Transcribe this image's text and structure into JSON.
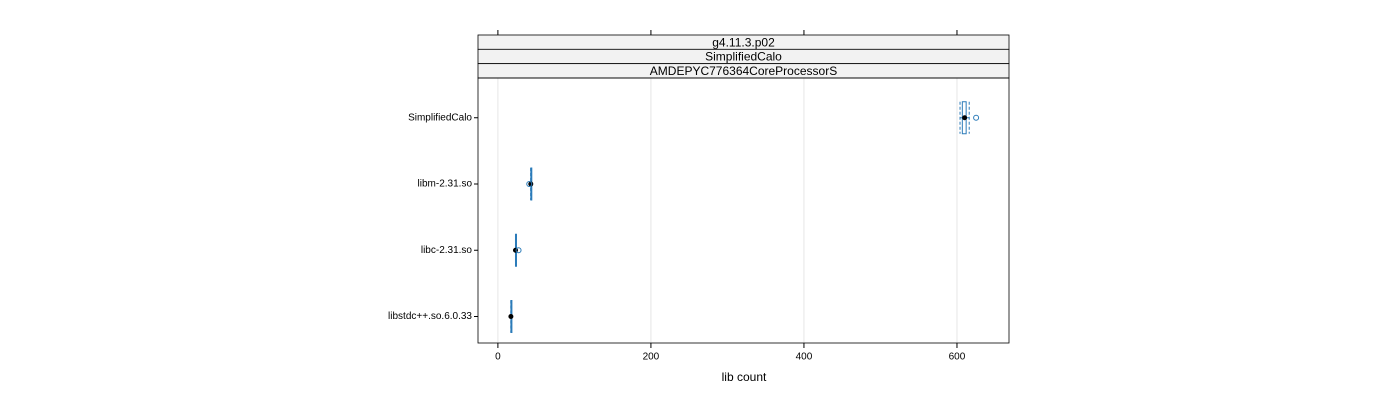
{
  "chart_data": {
    "type": "box",
    "strips": [
      "g4.11.3.p02",
      "SimplifiedCalo",
      "AMDEPYC776364CoreProcessorS"
    ],
    "xlabel": "lib count",
    "categories": [
      "SimplifiedCalo",
      "libm-2.31.so",
      "libc-2.31.so",
      "libstdc++.so.6.0.33"
    ],
    "stats": [
      {
        "min": 604,
        "q1": 607,
        "median": 610,
        "q3": 612,
        "max": 616,
        "outliers": [
          625
        ]
      },
      {
        "min": 43,
        "q1": 43,
        "median": 43,
        "q3": 43,
        "max": 43,
        "outliers": [
          41
        ]
      },
      {
        "min": 23,
        "q1": 23,
        "median": 23,
        "q3": 24,
        "max": 24,
        "outliers": [
          27
        ]
      },
      {
        "min": 17,
        "q1": 17,
        "median": 17,
        "q3": 17,
        "max": 17,
        "outliers": []
      }
    ],
    "color": "#2b7bb9",
    "xlim": [
      -26,
      668
    ],
    "xticks": [
      0,
      200,
      400,
      600
    ],
    "grid": true
  }
}
